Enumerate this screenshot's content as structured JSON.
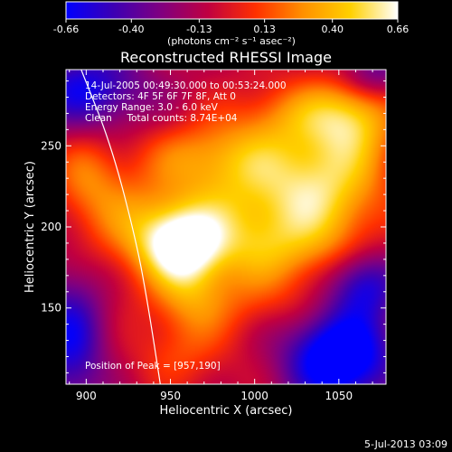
{
  "colorbar": {
    "ticks": [
      "-0.66",
      "-0.40",
      "-0.13",
      "0.13",
      "0.40",
      "0.66"
    ],
    "tick_values": [
      -0.66,
      -0.4,
      -0.13,
      0.13,
      0.4,
      0.66
    ],
    "range": [
      -0.66,
      0.66
    ],
    "unit_label": "(photons cm⁻² s⁻¹ asec⁻²)",
    "colors": [
      "#0000ff",
      "#3c00b4",
      "#800080",
      "#c00040",
      "#ff3000",
      "#ff9000",
      "#ffd000",
      "#ffffff"
    ]
  },
  "info_lines": [
    "14-Jul-2005 00:49:30.000 to 00:53:24.000",
    "Detectors: 4F 5F 6F 7F 8F, Att 0",
    "Energy Range: 3.0 - 6.0 keV",
    "Clean     Total counts: 8.74E+04"
  ],
  "peak_label": "Position of Peak = [957,190]",
  "footer_date": "5-Jul-2013 03:09",
  "chart_data": {
    "type": "heatmap",
    "title": "Reconstructed RHESSI Image",
    "xlabel": "Heliocentric X (arcsec)",
    "ylabel": "Heliocentric Y (arcsec)",
    "xlim": [
      888,
      1078
    ],
    "ylim": [
      103,
      297
    ],
    "xticks": [
      900,
      950,
      1000,
      1050
    ],
    "yticks": [
      150,
      200,
      250
    ],
    "peak": [
      957,
      190
    ],
    "limb_curve": [
      [
        897,
        297
      ],
      [
        915,
        250
      ],
      [
        930,
        190
      ],
      [
        937,
        150
      ],
      [
        944,
        103
      ]
    ],
    "blobs": [
      {
        "x": 957,
        "y": 190,
        "amp": 0.6,
        "sx": 18,
        "sy": 16
      },
      {
        "x": 930,
        "y": 200,
        "amp": 0.3,
        "sx": 22,
        "sy": 22
      },
      {
        "x": 1000,
        "y": 215,
        "amp": 0.45,
        "sx": 35,
        "sy": 25
      },
      {
        "x": 1045,
        "y": 230,
        "amp": 0.45,
        "sx": 25,
        "sy": 30
      },
      {
        "x": 975,
        "y": 245,
        "amp": 0.3,
        "sx": 30,
        "sy": 15
      },
      {
        "x": 1020,
        "y": 270,
        "amp": 0.25,
        "sx": 25,
        "sy": 15
      },
      {
        "x": 1060,
        "y": 270,
        "amp": 0.4,
        "sx": 18,
        "sy": 18
      },
      {
        "x": 1010,
        "y": 185,
        "amp": 0.25,
        "sx": 30,
        "sy": 15
      },
      {
        "x": 990,
        "y": 155,
        "amp": 0.2,
        "sx": 35,
        "sy": 15
      },
      {
        "x": 960,
        "y": 160,
        "amp": 0.25,
        "sx": 15,
        "sy": 25
      },
      {
        "x": 955,
        "y": 120,
        "amp": 0.15,
        "sx": 25,
        "sy": 15
      },
      {
        "x": 900,
        "y": 230,
        "amp": 0.3,
        "sx": 15,
        "sy": 20
      },
      {
        "x": 1050,
        "y": 120,
        "amp": -0.8,
        "sx": 22,
        "sy": 20
      },
      {
        "x": 1065,
        "y": 165,
        "amp": -0.5,
        "sx": 15,
        "sy": 15
      },
      {
        "x": 900,
        "y": 285,
        "amp": -0.5,
        "sx": 25,
        "sy": 18
      },
      {
        "x": 890,
        "y": 130,
        "amp": -0.5,
        "sx": 15,
        "sy": 30
      },
      {
        "x": 1070,
        "y": 295,
        "amp": -0.35,
        "sx": 15,
        "sy": 12
      }
    ],
    "background_level": -0.1
  }
}
